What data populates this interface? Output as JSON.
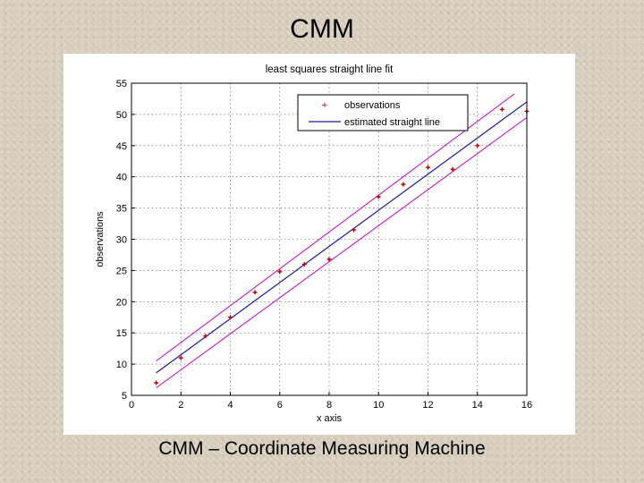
{
  "slide": {
    "title": "CMM",
    "caption": "CMM – Coordinate Measuring Machine"
  },
  "chart_data": {
    "type": "scatter",
    "title": "least squares straight line fit",
    "xlabel": "x axis",
    "ylabel": "observations",
    "xlim": [
      0,
      16
    ],
    "ylim": [
      5,
      55
    ],
    "xticks": [
      0,
      2,
      4,
      6,
      8,
      10,
      12,
      14,
      16
    ],
    "yticks": [
      5,
      10,
      15,
      20,
      25,
      30,
      35,
      40,
      45,
      50,
      55
    ],
    "grid": true,
    "legend_position": "top-right",
    "series": [
      {
        "name": "observations",
        "kind": "points",
        "color": "#cc0000",
        "x": [
          1,
          2,
          3,
          4,
          5,
          6,
          7,
          8,
          9,
          10,
          11,
          12,
          13,
          14,
          15,
          16
        ],
        "y": [
          7,
          11,
          14.5,
          17.5,
          21.5,
          24.8,
          26,
          26.8,
          31.5,
          36.8,
          38.8,
          41.5,
          41.2,
          45,
          50.8,
          50.5
        ]
      },
      {
        "name": "estimated straight line",
        "kind": "line",
        "color": "#1a1aaa",
        "x": [
          1,
          16
        ],
        "y": [
          8.6,
          52
        ]
      }
    ],
    "bands": {
      "color": "#cc00cc",
      "upper": {
        "x": [
          1,
          15.5
        ],
        "y": [
          10.5,
          53.3
        ]
      },
      "lower": {
        "x": [
          1,
          16
        ],
        "y": [
          6.2,
          49.5
        ]
      }
    },
    "colors": {
      "axes": "#000000",
      "grid": "#555555",
      "background": "#ffffff"
    }
  }
}
